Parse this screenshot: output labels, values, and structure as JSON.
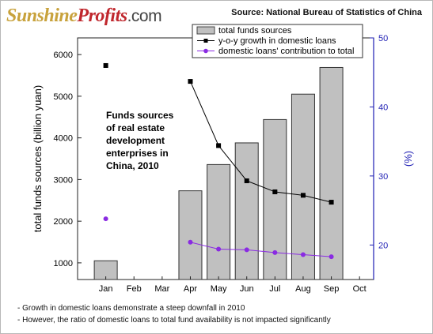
{
  "header": {
    "logo_part1": "Sunshine",
    "logo_part2": "Profits",
    "logo_part3": ".com",
    "source": "Source: National Bureau of Statistics of China"
  },
  "annotation": {
    "lines": [
      "Funds sources",
      "of real estate",
      "development",
      "enterprises in",
      "China, 2010"
    ]
  },
  "notes": [
    "- Growth in domestic loans demonstrate a steep downfall in 2010",
    "- However, the ratio of domestic loans to total fund availability is not impacted significantly"
  ],
  "chart_data": {
    "type": "bar",
    "categories": [
      "Jan",
      "Feb",
      "Mar",
      "Apr",
      "May",
      "Jun",
      "Jul",
      "Aug",
      "Sep",
      "Oct"
    ],
    "ylabel": "total funds sources (billion yuan)",
    "y2label": "(%)",
    "ylim": [
      600,
      6400
    ],
    "yticks": [
      1000,
      2000,
      3000,
      4000,
      5000,
      6000
    ],
    "y2lim": [
      15,
      50
    ],
    "y2ticks": [
      20,
      30,
      40,
      50
    ],
    "legend_position": "top",
    "colors": {
      "bars": "#c0c0c0",
      "growth": "#000000",
      "contribution": "#8a2be2",
      "right_axis": "#1f1fb4"
    },
    "series": [
      {
        "name": "total funds sources",
        "axis": "left",
        "kind": "bar",
        "values": [
          1050,
          null,
          null,
          2730,
          3360,
          3880,
          4440,
          5050,
          5690,
          null
        ]
      },
      {
        "name": "y-o-y growth in domestic loans",
        "axis": "right",
        "kind": "line",
        "values": [
          46.0,
          null,
          null,
          43.7,
          34.4,
          29.3,
          27.7,
          27.2,
          26.2,
          null
        ]
      },
      {
        "name": "domestic loans' contribution to total",
        "axis": "right",
        "kind": "line",
        "values": [
          23.8,
          null,
          null,
          20.4,
          19.4,
          19.3,
          18.9,
          18.6,
          18.3,
          null
        ]
      }
    ]
  }
}
